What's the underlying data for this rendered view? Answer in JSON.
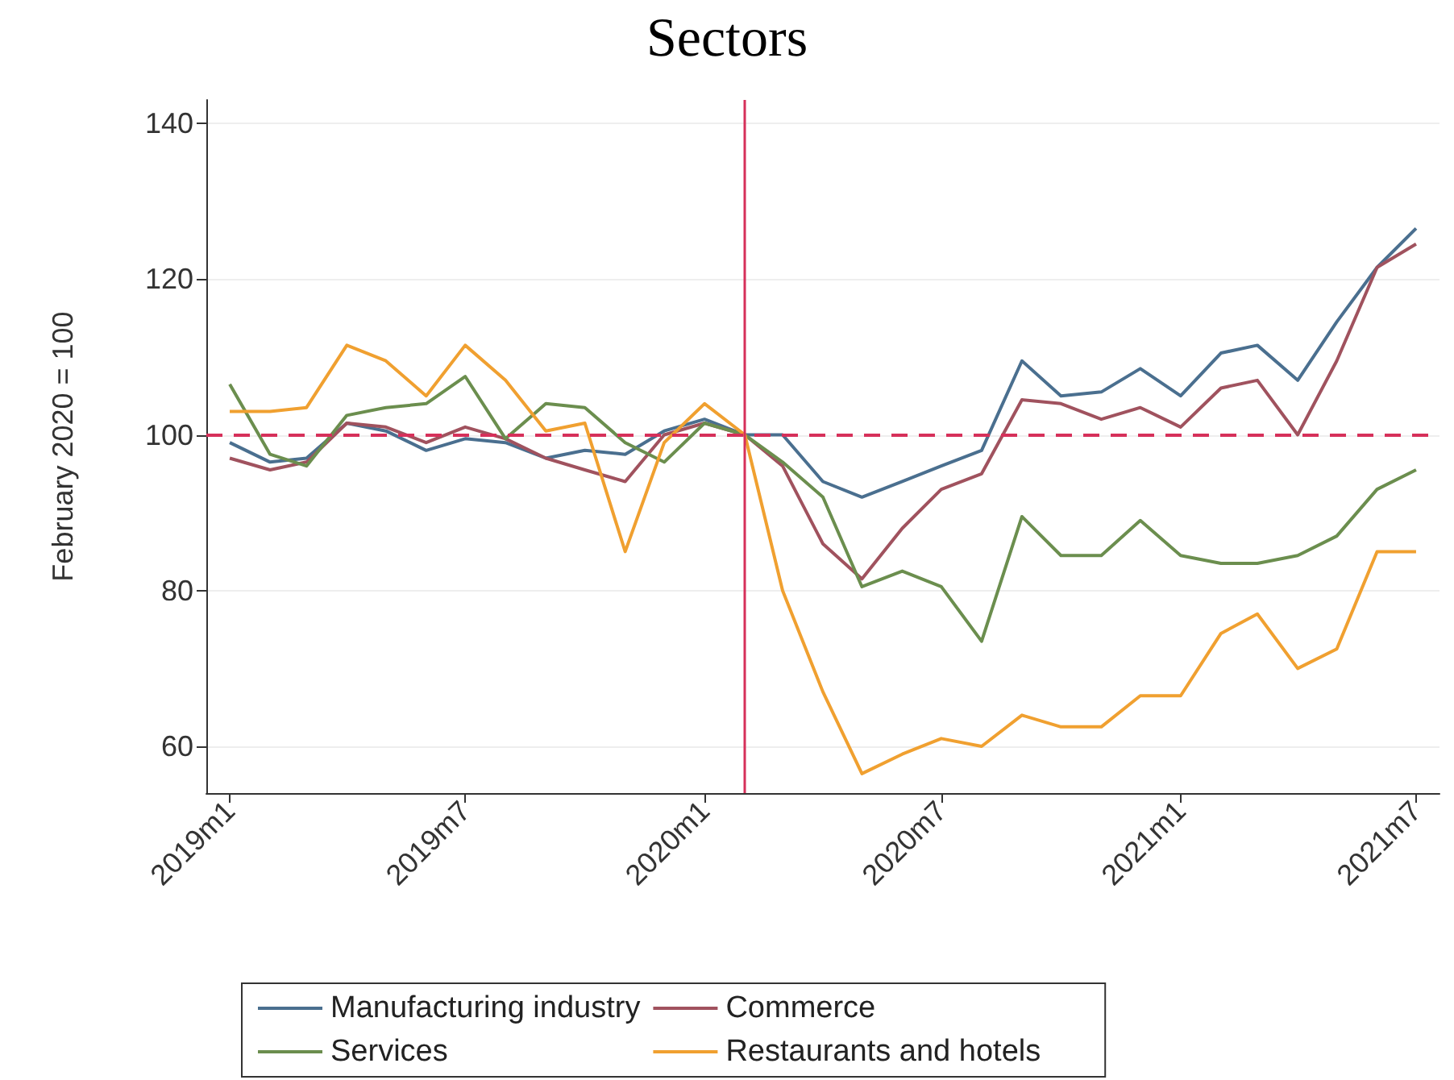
{
  "chart_data": {
    "type": "line",
    "title": "Sectors",
    "ylabel": "February 2020 = 100",
    "x": [
      "2019-01",
      "2019-02",
      "2019-03",
      "2019-04",
      "2019-05",
      "2019-06",
      "2019-07",
      "2019-08",
      "2019-09",
      "2019-10",
      "2019-11",
      "2019-12",
      "2020-01",
      "2020-02",
      "2020-03",
      "2020-04",
      "2020-05",
      "2020-06",
      "2020-07",
      "2020-08",
      "2020-09",
      "2020-10",
      "2020-11",
      "2020-12",
      "2021-01",
      "2021-02",
      "2021-03",
      "2021-04",
      "2021-05",
      "2021-06",
      "2021-07"
    ],
    "series": [
      {
        "name": "Manufacturing industry",
        "color": "#4a6f8f",
        "values": [
          99,
          96.5,
          97,
          101.5,
          100.5,
          98,
          99.5,
          99,
          97,
          98,
          97.5,
          100.5,
          102,
          100,
          100,
          94,
          92,
          94,
          96,
          98,
          109.5,
          105,
          105.5,
          108.5,
          105,
          110.5,
          111.5,
          107,
          114.5,
          121.5,
          126.5
        ]
      },
      {
        "name": "Commerce",
        "color": "#a0525e",
        "values": [
          97,
          95.5,
          96.5,
          101.5,
          101,
          99,
          101,
          99.5,
          97,
          95.5,
          94,
          100,
          101.5,
          100,
          96,
          86,
          81.5,
          88,
          93,
          95,
          104.5,
          104,
          102,
          103.5,
          101,
          106,
          107,
          100,
          109.5,
          121.5,
          124.5
        ]
      },
      {
        "name": "Services",
        "color": "#6b8e4e",
        "values": [
          106.5,
          97.5,
          96,
          102.5,
          103.5,
          104,
          107.5,
          99.5,
          104,
          103.5,
          99,
          96.5,
          101.5,
          100,
          96.5,
          92,
          80.5,
          82.5,
          80.5,
          73.5,
          89.5,
          84.5,
          84.5,
          89,
          84.5,
          83.5,
          83.5,
          84.5,
          87,
          93,
          95.5
        ]
      },
      {
        "name": "Restaurants and hotels",
        "color": "#f0a030",
        "values": [
          103,
          103,
          103.5,
          111.5,
          109.5,
          105,
          111.5,
          107,
          100.5,
          101.5,
          85,
          99,
          104,
          100,
          80,
          67,
          56.5,
          59,
          61,
          60,
          64,
          62.5,
          62.5,
          66.5,
          66.5,
          74.5,
          77,
          70,
          72.5,
          85,
          85
        ]
      }
    ],
    "xlim": [
      "2018-12-14",
      "2021-07-19"
    ],
    "xticks": [
      {
        "value": "2019-01",
        "label": "2019m1"
      },
      {
        "value": "2019-07",
        "label": "2019m7"
      },
      {
        "value": "2020-01",
        "label": "2020m1"
      },
      {
        "value": "2020-07",
        "label": "2020m7"
      },
      {
        "value": "2021-01",
        "label": "2021m1"
      },
      {
        "value": "2021-07",
        "label": "2021m7"
      }
    ],
    "ylim": [
      54,
      143
    ],
    "yticks": [
      60,
      80,
      100,
      120,
      140
    ],
    "ref_lines": [
      {
        "axis": "y",
        "value": 100,
        "color": "#d6305a",
        "line_style": "dashed"
      },
      {
        "axis": "x",
        "value": "2020-02",
        "color": "#d6305a",
        "line_style": "solid"
      }
    ],
    "grid": "y",
    "legend": "bottom",
    "marker": "none",
    "line_style": "solid"
  }
}
